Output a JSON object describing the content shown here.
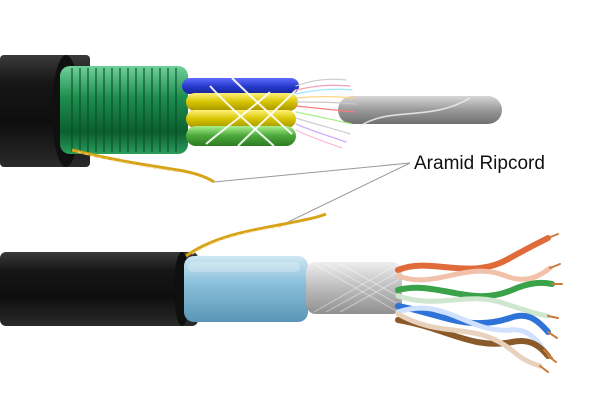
{
  "callout": {
    "label": "Aramid Ripcord"
  },
  "colors": {
    "background": "#ffffff",
    "outer_jacket": "#1b1b1b",
    "steel_armor_tape": "#1f8f4f",
    "tube_yellow": "#d6c400",
    "tube_green": "#4aa63a",
    "tube_blue": "#2438c9",
    "central_strength_member": "#9a9a9a",
    "aramid_yarn": "#d8a31a",
    "foil_shield": "#8cc1dc",
    "braid_shield": "#bcbcbc",
    "pair_orange": "#e06a3a",
    "pair_green": "#3aa34a",
    "pair_blue": "#2f73d8",
    "pair_brown": "#8b5a2b",
    "copper": "#c87a3a"
  }
}
